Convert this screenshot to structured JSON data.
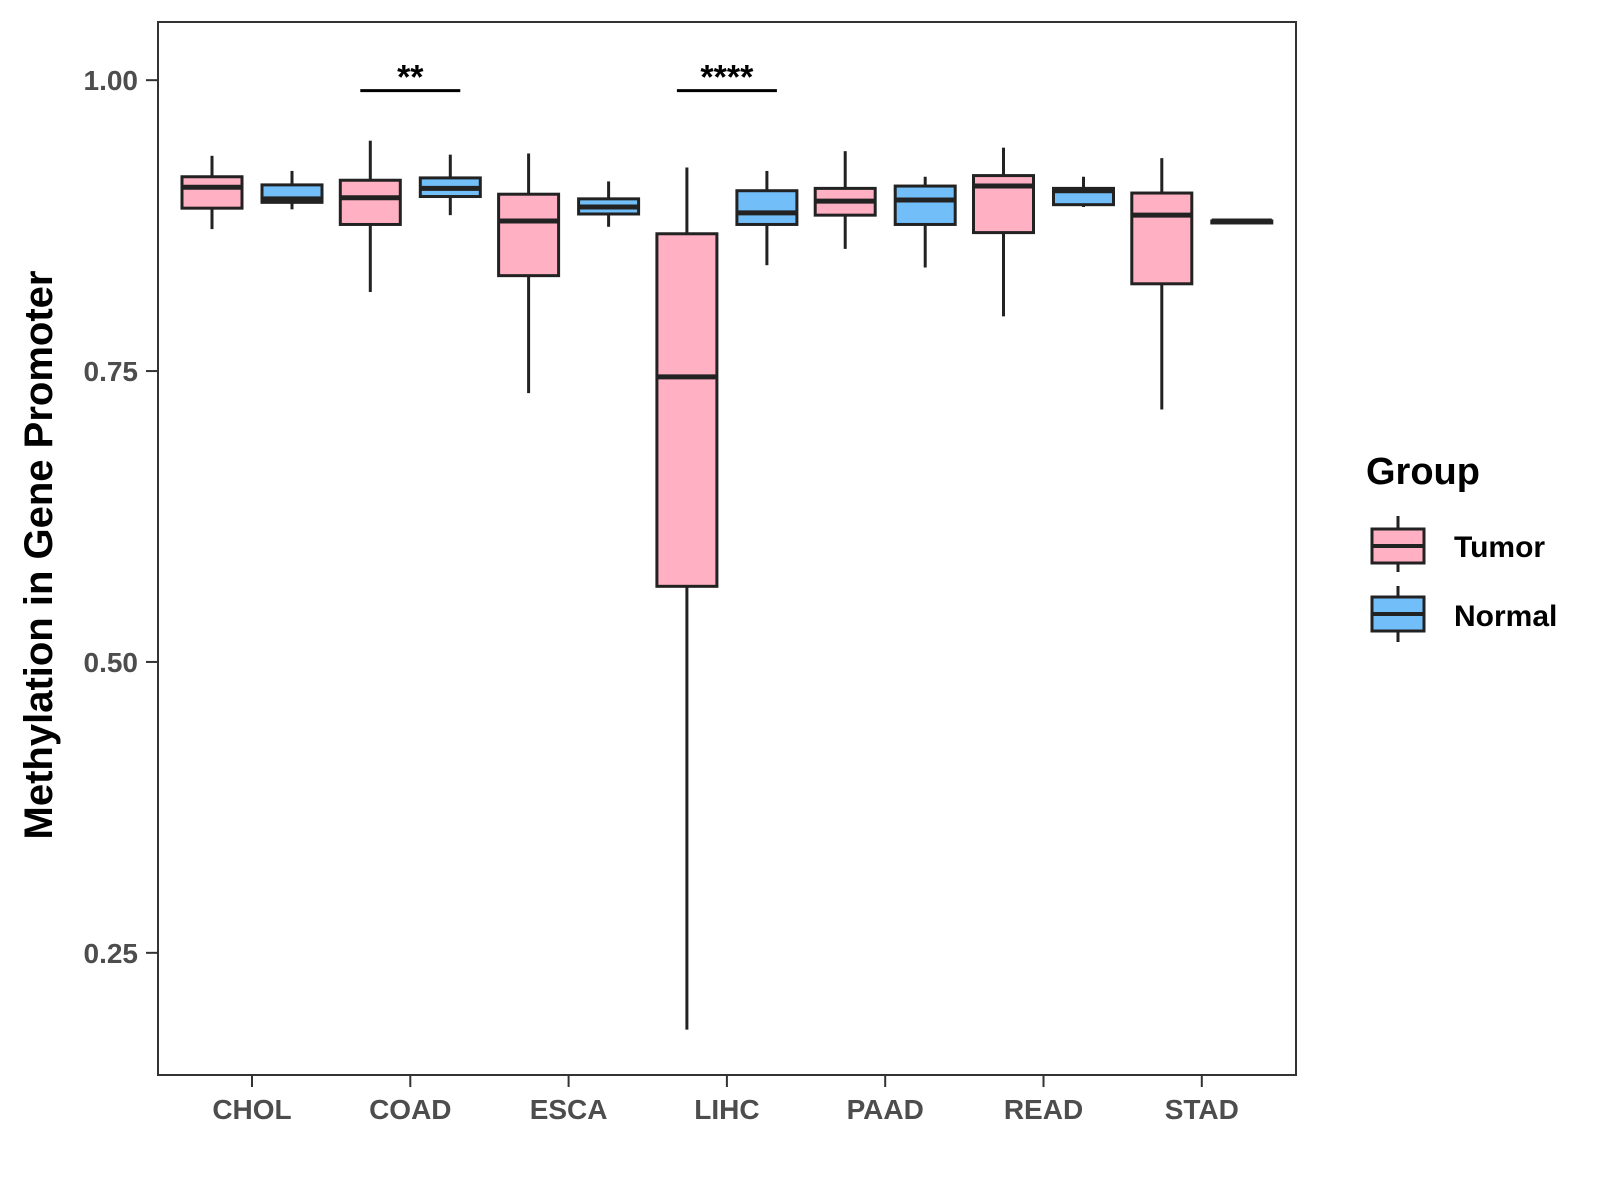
{
  "chart_data": {
    "type": "boxplot",
    "title": "",
    "xlabel": "",
    "ylabel": "Methylation in Gene Promoter",
    "ylim": [
      0.145,
      1.05
    ],
    "yticks": [
      0.25,
      0.5,
      0.75,
      1.0
    ],
    "ytick_labels": [
      "0.25",
      "0.50",
      "0.75",
      "1.00"
    ],
    "grid": false,
    "legend_position": "right",
    "categories": [
      "CHOL",
      "COAD",
      "ESCA",
      "LIHC",
      "PAAD",
      "READ",
      "STAD"
    ],
    "series": [
      {
        "name": "Tumor",
        "color": "#FFB0C2",
        "boxes": [
          {
            "category": "CHOL",
            "whisker_low": 0.872,
            "q1": 0.89,
            "median": 0.908,
            "q3": 0.917,
            "whisker_high": 0.935
          },
          {
            "category": "COAD",
            "whisker_low": 0.818,
            "q1": 0.876,
            "median": 0.899,
            "q3": 0.914,
            "whisker_high": 0.948
          },
          {
            "category": "ESCA",
            "whisker_low": 0.731,
            "q1": 0.832,
            "median": 0.879,
            "q3": 0.902,
            "whisker_high": 0.937
          },
          {
            "category": "LIHC",
            "whisker_low": 0.184,
            "q1": 0.565,
            "median": 0.745,
            "q3": 0.868,
            "whisker_high": 0.925
          },
          {
            "category": "PAAD",
            "whisker_low": 0.855,
            "q1": 0.884,
            "median": 0.896,
            "q3": 0.907,
            "whisker_high": 0.939
          },
          {
            "category": "READ",
            "whisker_low": 0.797,
            "q1": 0.869,
            "median": 0.909,
            "q3": 0.918,
            "whisker_high": 0.942
          },
          {
            "category": "STAD",
            "whisker_low": 0.717,
            "q1": 0.825,
            "median": 0.884,
            "q3": 0.903,
            "whisker_high": 0.933
          }
        ]
      },
      {
        "name": "Normal",
        "color": "#72BEF9",
        "boxes": [
          {
            "category": "CHOL",
            "whisker_low": 0.889,
            "q1": 0.895,
            "median": 0.898,
            "q3": 0.91,
            "whisker_high": 0.922
          },
          {
            "category": "COAD",
            "whisker_low": 0.884,
            "q1": 0.9,
            "median": 0.907,
            "q3": 0.916,
            "whisker_high": 0.936
          },
          {
            "category": "ESCA",
            "whisker_low": 0.874,
            "q1": 0.885,
            "median": 0.891,
            "q3": 0.898,
            "whisker_high": 0.913
          },
          {
            "category": "LIHC",
            "whisker_low": 0.841,
            "q1": 0.876,
            "median": 0.886,
            "q3": 0.905,
            "whisker_high": 0.922
          },
          {
            "category": "PAAD",
            "whisker_low": 0.839,
            "q1": 0.876,
            "median": 0.897,
            "q3": 0.909,
            "whisker_high": 0.917
          },
          {
            "category": "READ",
            "whisker_low": 0.891,
            "q1": 0.893,
            "median": 0.905,
            "q3": 0.907,
            "whisker_high": 0.917
          },
          {
            "category": "STAD",
            "whisker_low": 0.879,
            "q1": 0.879,
            "median": 0.879,
            "q3": 0.879,
            "whisker_high": 0.879
          }
        ]
      }
    ],
    "annotations": [
      {
        "category": "COAD",
        "label": "**",
        "y": 0.991
      },
      {
        "category": "LIHC",
        "label": "****",
        "y": 0.991
      }
    ],
    "legend": {
      "title": "Group",
      "entries": [
        "Tumor",
        "Normal"
      ]
    }
  }
}
